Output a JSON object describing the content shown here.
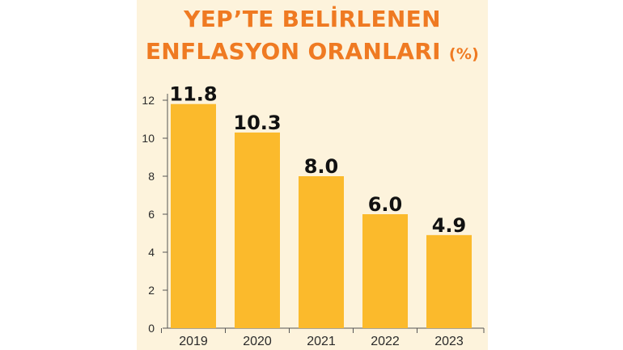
{
  "title": {
    "line1": "YEP’TE BELİRLENEN",
    "line2": "ENFLASYON ORANLARI",
    "unit": "(%)"
  },
  "colors": {
    "bar": "#fbba2c",
    "title": "#ef7a22",
    "background": "#fdf3dc"
  },
  "chart_data": {
    "type": "bar",
    "title": "YEP’TE BELİRLENEN ENFLASYON ORANLARI (%)",
    "categories": [
      "2019",
      "2020",
      "2021",
      "2022",
      "2023"
    ],
    "values": [
      11.8,
      10.3,
      8.0,
      6.0,
      4.9
    ],
    "value_labels": [
      "11.8",
      "10.3",
      "8.0",
      "6.0",
      "4.9"
    ],
    "ylim": [
      0,
      12
    ],
    "yticks": [
      0,
      2,
      4,
      6,
      8,
      10,
      12
    ],
    "xlabel": "",
    "ylabel": "",
    "grid": false,
    "legend": "none"
  }
}
